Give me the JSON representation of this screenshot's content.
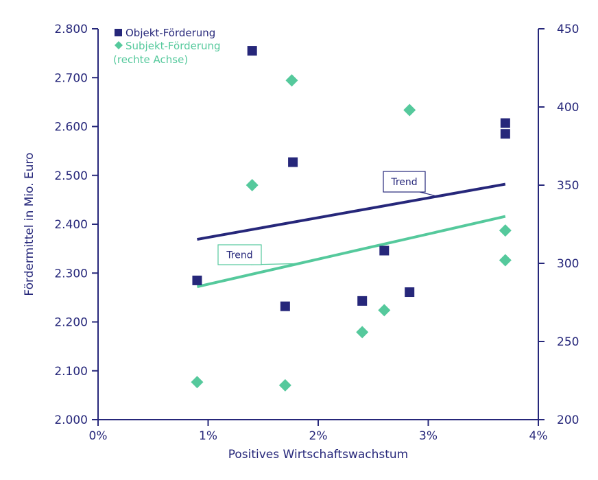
{
  "chart_data": {
    "type": "scatter",
    "xlabel": "Positives Wirtschaftswachstum",
    "ylabel": "Fördermittel in Mio. Euro",
    "x_ticks": [
      "0%",
      "1%",
      "2%",
      "3%",
      "4%"
    ],
    "x_range": [
      0,
      4
    ],
    "y_left_range": [
      2000,
      2800
    ],
    "y_left_ticks": [
      "2.000",
      "2.100",
      "2.200",
      "2.300",
      "2.400",
      "2.500",
      "2.600",
      "2.700",
      "2.800"
    ],
    "y_right_range": [
      200,
      450
    ],
    "y_right_ticks": [
      "200",
      "250",
      "300",
      "350",
      "400",
      "450"
    ],
    "grid": false,
    "legend_position": "top-left",
    "series": [
      {
        "name": "Objekt-Förderung",
        "axis": "left",
        "marker": "square",
        "color": "#26277a",
        "points": [
          {
            "x": 0.9,
            "y": 2285
          },
          {
            "x": 1.4,
            "y": 2755
          },
          {
            "x": 1.7,
            "y": 2232
          },
          {
            "x": 1.77,
            "y": 2527
          },
          {
            "x": 2.4,
            "y": 2243
          },
          {
            "x": 2.6,
            "y": 2346
          },
          {
            "x": 2.83,
            "y": 2261
          },
          {
            "x": 3.7,
            "y": 2607
          },
          {
            "x": 3.7,
            "y": 2585
          }
        ],
        "trend": {
          "x": [
            0.9,
            3.7
          ],
          "y": [
            2369,
            2482
          ]
        }
      },
      {
        "name": "Subjekt-Förderung",
        "name_note": "(rechte Achse)",
        "axis": "right",
        "marker": "diamond",
        "color": "#55c99c",
        "points": [
          {
            "x": 0.9,
            "y": 224
          },
          {
            "x": 1.4,
            "y": 350
          },
          {
            "x": 1.7,
            "y": 222
          },
          {
            "x": 1.76,
            "y": 417
          },
          {
            "x": 2.4,
            "y": 256
          },
          {
            "x": 2.6,
            "y": 270
          },
          {
            "x": 2.83,
            "y": 398
          },
          {
            "x": 3.7,
            "y": 321
          },
          {
            "x": 3.7,
            "y": 302
          }
        ],
        "trend": {
          "x": [
            0.9,
            3.7
          ],
          "y": [
            285,
            330
          ]
        }
      }
    ],
    "annotations": [
      {
        "text": "Trend",
        "series": 0
      },
      {
        "text": "Trend",
        "series": 1
      }
    ]
  }
}
